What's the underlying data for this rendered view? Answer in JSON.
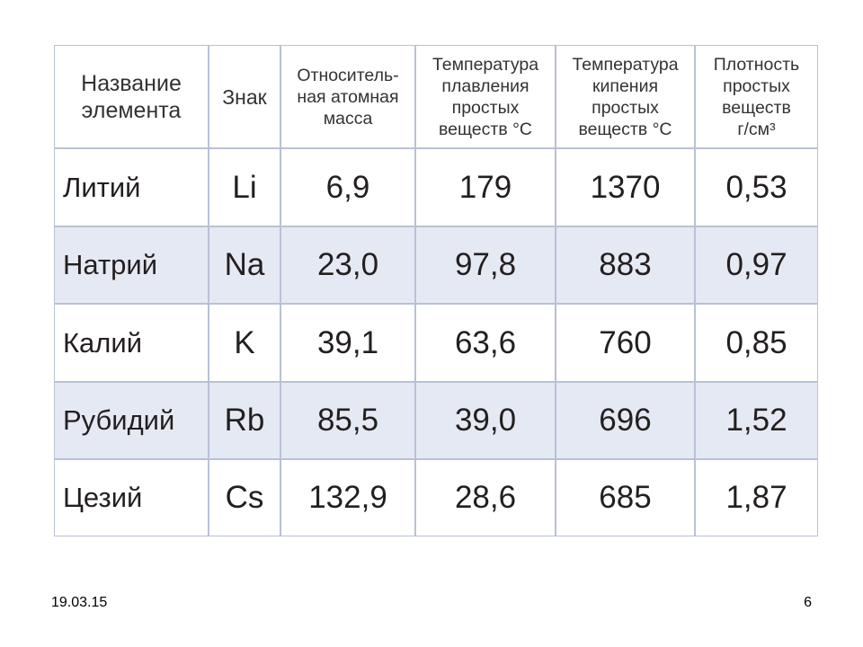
{
  "table": {
    "header": [
      [
        "Название",
        "элемента"
      ],
      [
        "Знак"
      ],
      [
        "Относитель-",
        "ная атомная",
        "масса"
      ],
      [
        "Температура",
        "плавления",
        "простых",
        "веществ °С"
      ],
      [
        "Температура",
        "кипения",
        "простых",
        "веществ °С"
      ],
      [
        "Плотность",
        "простых",
        "веществ",
        "г/см³"
      ]
    ],
    "rows": [
      [
        "Литий",
        "Li",
        "6,9",
        "179",
        "1370",
        "0,53"
      ],
      [
        "Натрий",
        "Na",
        "23,0",
        "97,8",
        "883",
        "0,97"
      ],
      [
        "Калий",
        "K",
        "39,1",
        "63,6",
        "760",
        "0,85"
      ],
      [
        "Рубидий",
        "Rb",
        "85,5",
        "39,0",
        "696",
        "1,52"
      ],
      [
        "Цезий",
        "Cs",
        "132,9",
        "28,6",
        "685",
        "1,87"
      ]
    ]
  },
  "footer": {
    "date": "19.03.15",
    "page": "6"
  }
}
